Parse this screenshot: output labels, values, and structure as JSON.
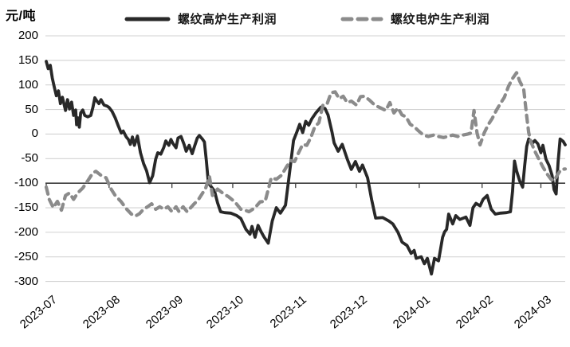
{
  "chart_data": {
    "type": "line",
    "title": "",
    "unit": "元/吨",
    "grid": true,
    "legend_position": "top",
    "x_tick_labels": [
      "2023-07",
      "2023-08",
      "2023-09",
      "2023-10",
      "2023-11",
      "2023-12",
      "2024-01",
      "2024-02",
      "2024-03"
    ],
    "x_tick_days": [
      0,
      31,
      62,
      92,
      123,
      153,
      184,
      215,
      244
    ],
    "x_range_days": [
      0,
      256
    ],
    "y_ticks": [
      200,
      150,
      100,
      50,
      0,
      -50,
      -100,
      -150,
      -200,
      -250,
      -300
    ],
    "y_range": [
      -300,
      200
    ],
    "x_axis_cross": -100,
    "colors": {
      "gridline": "#d2d2d2",
      "axis": "#3c3c3c",
      "text": "#000000"
    },
    "series": [
      {
        "name": "螺纹高炉生产利润",
        "color": "#282828",
        "dash": null,
        "points": [
          [
            0,
            148
          ],
          [
            1,
            133
          ],
          [
            2,
            140
          ],
          [
            3,
            114
          ],
          [
            4,
            95
          ],
          [
            5,
            78
          ],
          [
            6,
            88
          ],
          [
            7,
            62
          ],
          [
            8,
            75
          ],
          [
            9.5,
            48
          ],
          [
            10.5,
            70
          ],
          [
            11.5,
            51
          ],
          [
            12.5,
            65
          ],
          [
            13.5,
            38
          ],
          [
            14.5,
            49
          ],
          [
            15,
            19
          ],
          [
            15.7,
            33
          ],
          [
            16.3,
            14
          ],
          [
            17,
            43
          ],
          [
            18,
            49
          ],
          [
            19,
            38
          ],
          [
            20.5,
            35
          ],
          [
            22,
            38
          ],
          [
            23,
            54
          ],
          [
            24,
            74
          ],
          [
            25,
            67
          ],
          [
            26,
            62
          ],
          [
            27,
            70
          ],
          [
            28.5,
            59
          ],
          [
            30,
            57
          ],
          [
            31,
            54
          ],
          [
            32.5,
            46
          ],
          [
            34,
            33
          ],
          [
            35.5,
            17
          ],
          [
            37,
            2
          ],
          [
            38,
            6
          ],
          [
            39.5,
            -6
          ],
          [
            40.5,
            -11
          ],
          [
            41.5,
            -21
          ],
          [
            42.5,
            -6
          ],
          [
            43.5,
            -23
          ],
          [
            45,
            -4
          ],
          [
            46.5,
            -38
          ],
          [
            48,
            -60
          ],
          [
            49.5,
            -75
          ],
          [
            51,
            -99
          ],
          [
            52.5,
            -85
          ],
          [
            54,
            -51
          ],
          [
            55,
            -38
          ],
          [
            56.5,
            -41
          ],
          [
            58,
            -27
          ],
          [
            59,
            -14
          ],
          [
            60.5,
            -23
          ],
          [
            61.5,
            -11
          ],
          [
            62.5,
            -19
          ],
          [
            64,
            -28
          ],
          [
            65,
            -8
          ],
          [
            66.5,
            -5
          ],
          [
            68,
            -21
          ],
          [
            69,
            -35
          ],
          [
            70.5,
            -23
          ],
          [
            72,
            -40
          ],
          [
            73,
            -27
          ],
          [
            74.5,
            -8
          ],
          [
            75.5,
            -3
          ],
          [
            77,
            -10
          ],
          [
            78,
            -16
          ],
          [
            79,
            -55
          ],
          [
            80,
            -100
          ],
          [
            81.5,
            -108
          ],
          [
            83,
            -116
          ],
          [
            84.5,
            -140
          ],
          [
            86,
            -158
          ],
          [
            88,
            -160
          ],
          [
            91,
            -161
          ],
          [
            94,
            -166
          ],
          [
            96,
            -172
          ],
          [
            98.5,
            -194
          ],
          [
            100.5,
            -204
          ],
          [
            101.5,
            -188
          ],
          [
            103,
            -210
          ],
          [
            104.5,
            -186
          ],
          [
            106,
            -199
          ],
          [
            107.5,
            -210
          ],
          [
            109.5,
            -222
          ],
          [
            111.5,
            -177
          ],
          [
            113.5,
            -150
          ],
          [
            115.5,
            -161
          ],
          [
            118,
            -145
          ],
          [
            120.5,
            -63
          ],
          [
            122,
            -13
          ],
          [
            123.5,
            3
          ],
          [
            125,
            20
          ],
          [
            126.5,
            3
          ],
          [
            128,
            26
          ],
          [
            129.5,
            18
          ],
          [
            131,
            31
          ],
          [
            133,
            43
          ],
          [
            135.5,
            55
          ],
          [
            137.5,
            52
          ],
          [
            139,
            39
          ],
          [
            141,
            3
          ],
          [
            142,
            -18
          ],
          [
            144,
            -35
          ],
          [
            146,
            -21
          ],
          [
            148.5,
            -51
          ],
          [
            150.5,
            -72
          ],
          [
            152.5,
            -56
          ],
          [
            154.5,
            -76
          ],
          [
            156,
            -63
          ],
          [
            158.5,
            -89
          ],
          [
            160.5,
            -133
          ],
          [
            162.5,
            -171
          ],
          [
            166,
            -170
          ],
          [
            169,
            -177
          ],
          [
            171,
            -183
          ],
          [
            173.5,
            -200
          ],
          [
            175.5,
            -220
          ],
          [
            178,
            -227
          ],
          [
            180,
            -243
          ],
          [
            181.5,
            -237
          ],
          [
            182.5,
            -253
          ],
          [
            185,
            -250
          ],
          [
            186.5,
            -264
          ],
          [
            188,
            -253
          ],
          [
            190,
            -285
          ],
          [
            191.5,
            -253
          ],
          [
            193.5,
            -258
          ],
          [
            195.5,
            -210
          ],
          [
            196.5,
            -199
          ],
          [
            197.5,
            -194
          ],
          [
            198.5,
            -163
          ],
          [
            200.5,
            -183
          ],
          [
            202,
            -166
          ],
          [
            204,
            -174
          ],
          [
            207,
            -169
          ],
          [
            209,
            -186
          ],
          [
            210.5,
            -150
          ],
          [
            212,
            -141
          ],
          [
            214,
            -146
          ],
          [
            215.5,
            -133
          ],
          [
            217.5,
            -125
          ],
          [
            219.5,
            -153
          ],
          [
            221.5,
            -163
          ],
          [
            224,
            -161
          ],
          [
            227,
            -160
          ],
          [
            229,
            -158
          ],
          [
            230,
            -117
          ],
          [
            231,
            -55
          ],
          [
            232,
            -75
          ],
          [
            233.5,
            -95
          ],
          [
            235,
            -108
          ],
          [
            236,
            -65
          ],
          [
            237,
            -25
          ],
          [
            238,
            -10
          ],
          [
            240,
            -18
          ],
          [
            241,
            -13
          ],
          [
            242.5,
            -20
          ],
          [
            244,
            -38
          ],
          [
            245,
            -23
          ],
          [
            246.5,
            -51
          ],
          [
            248,
            -64
          ],
          [
            249.5,
            -84
          ],
          [
            250.5,
            -113
          ],
          [
            251.5,
            -122
          ],
          [
            252.5,
            -56
          ],
          [
            253.5,
            -10
          ],
          [
            255,
            -15
          ],
          [
            256,
            -22
          ]
        ]
      },
      {
        "name": "螺纹电炉生产利润",
        "color": "#8b8b8b",
        "dash": [
          9,
          7
        ],
        "points": [
          [
            0,
            -108
          ],
          [
            1.5,
            -133
          ],
          [
            3.5,
            -150
          ],
          [
            5.5,
            -137
          ],
          [
            7.5,
            -155
          ],
          [
            9.5,
            -125
          ],
          [
            11.5,
            -120
          ],
          [
            13.5,
            -133
          ],
          [
            15.5,
            -120
          ],
          [
            18,
            -110
          ],
          [
            20.5,
            -95
          ],
          [
            23,
            -79
          ],
          [
            24.5,
            -76
          ],
          [
            27,
            -84
          ],
          [
            29.5,
            -89
          ],
          [
            32,
            -112
          ],
          [
            34,
            -125
          ],
          [
            37,
            -138
          ],
          [
            39.5,
            -152
          ],
          [
            42,
            -163
          ],
          [
            44,
            -167
          ],
          [
            46,
            -162
          ],
          [
            48,
            -153
          ],
          [
            50,
            -148
          ],
          [
            52,
            -142
          ],
          [
            54,
            -153
          ],
          [
            56,
            -148
          ],
          [
            58,
            -153
          ],
          [
            60,
            -148
          ],
          [
            62,
            -158
          ],
          [
            64,
            -148
          ],
          [
            65.5,
            -158
          ],
          [
            67.5,
            -148
          ],
          [
            69.5,
            -158
          ],
          [
            71,
            -151
          ],
          [
            73,
            -142
          ],
          [
            75,
            -134
          ],
          [
            77,
            -121
          ],
          [
            78.5,
            -112
          ],
          [
            80.5,
            -86
          ],
          [
            82,
            -125
          ],
          [
            84.5,
            -112
          ],
          [
            87,
            -120
          ],
          [
            90,
            -128
          ],
          [
            93,
            -138
          ],
          [
            96,
            -153
          ],
          [
            98,
            -155
          ],
          [
            100,
            -158
          ],
          [
            103,
            -150
          ],
          [
            105.5,
            -138
          ],
          [
            108,
            -137
          ],
          [
            111,
            -89
          ],
          [
            113.5,
            -92
          ],
          [
            116,
            -84
          ],
          [
            118.5,
            -67
          ],
          [
            120.5,
            -54
          ],
          [
            122.5,
            -56
          ],
          [
            124.5,
            -38
          ],
          [
            126.5,
            -21
          ],
          [
            128.5,
            -23
          ],
          [
            130.5,
            -7
          ],
          [
            132.5,
            15
          ],
          [
            134.5,
            23
          ],
          [
            136.5,
            59
          ],
          [
            138.5,
            61
          ],
          [
            140.5,
            84
          ],
          [
            142.5,
            86
          ],
          [
            144.5,
            72
          ],
          [
            146.5,
            77
          ],
          [
            148.5,
            64
          ],
          [
            150.5,
            67
          ],
          [
            153,
            59
          ],
          [
            155,
            76
          ],
          [
            157,
            77
          ],
          [
            159.5,
            69
          ],
          [
            162,
            59
          ],
          [
            165,
            53
          ],
          [
            167.5,
            48
          ],
          [
            169.5,
            64
          ],
          [
            171.5,
            43
          ],
          [
            173.5,
            53
          ],
          [
            175.5,
            39
          ],
          [
            177.5,
            35
          ],
          [
            179.5,
            20
          ],
          [
            181.5,
            15
          ],
          [
            183.5,
            7
          ],
          [
            186,
            -2
          ],
          [
            188.5,
            -5
          ],
          [
            191,
            -2
          ],
          [
            193.5,
            -5
          ],
          [
            196,
            -7
          ],
          [
            198,
            -5
          ],
          [
            200.5,
            -2
          ],
          [
            203,
            -5
          ],
          [
            205.5,
            -2
          ],
          [
            208,
            0
          ],
          [
            209.5,
            2
          ],
          [
            211,
            48
          ],
          [
            212.5,
            2
          ],
          [
            214,
            -22
          ],
          [
            216,
            2
          ],
          [
            218,
            19
          ],
          [
            220,
            32
          ],
          [
            222,
            48
          ],
          [
            224,
            62
          ],
          [
            226,
            75
          ],
          [
            228,
            97
          ],
          [
            230,
            113
          ],
          [
            232,
            125
          ],
          [
            233.5,
            108
          ],
          [
            235.5,
            92
          ],
          [
            237,
            36
          ],
          [
            238,
            3
          ],
          [
            239,
            -15
          ],
          [
            241,
            -35
          ],
          [
            243,
            -51
          ],
          [
            245,
            -67
          ],
          [
            247,
            -81
          ],
          [
            249,
            -92
          ],
          [
            250.5,
            -95
          ],
          [
            252.5,
            -81
          ],
          [
            254,
            -72
          ],
          [
            256,
            -71
          ]
        ]
      }
    ]
  }
}
